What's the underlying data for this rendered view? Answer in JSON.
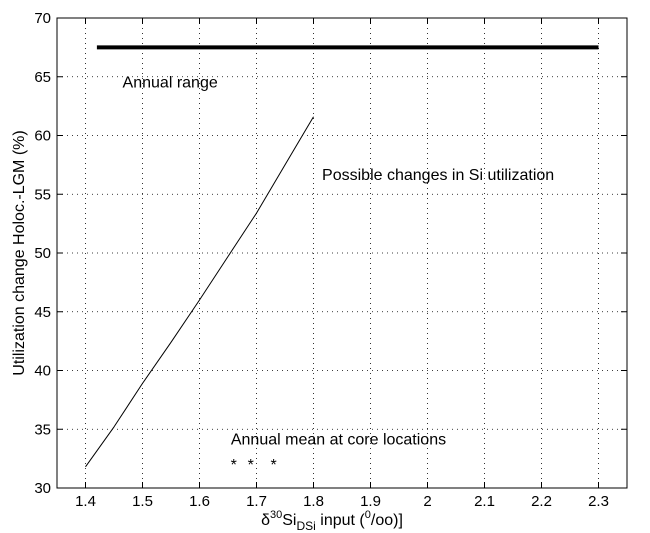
{
  "chart_data": {
    "type": "line",
    "xlabel": {
      "delta": "δ",
      "superscript": "30",
      "base": "Si",
      "subscript": "DSi",
      "rest_before_unit": " input (",
      "unit_superscript": "0",
      "unit_rest": "/oo)]"
    },
    "ylabel": "Utilization change Holoc.-LGM (%)",
    "xlim": [
      1.35,
      2.35
    ],
    "ylim": [
      30,
      70
    ],
    "xticks": [
      1.4,
      1.5,
      1.6,
      1.7,
      1.8,
      1.9,
      2,
      2.1,
      2.2,
      2.3
    ],
    "yticks": [
      30,
      35,
      40,
      45,
      50,
      55,
      60,
      65,
      70
    ],
    "grid": true,
    "series": [
      {
        "style": "thin-line",
        "x": [
          1.4,
          1.45,
          1.5,
          1.55,
          1.6,
          1.65,
          1.7,
          1.75,
          1.8
        ],
        "y": [
          31.8,
          35.2,
          38.9,
          42.4,
          46.0,
          49.7,
          53.4,
          57.5,
          61.6
        ]
      },
      {
        "style": "thick-line",
        "x": [
          1.42,
          2.3
        ],
        "y": [
          67.5,
          67.5
        ]
      },
      {
        "style": "asterisk-markers",
        "x": [
          1.66,
          1.69,
          1.73
        ],
        "y": [
          32.2,
          32.2,
          32.2
        ]
      }
    ],
    "annotations": [
      {
        "id": "annual-range",
        "text": "Annual range",
        "x": 1.465,
        "y": 64.1
      },
      {
        "id": "si-utilization",
        "text": "Possible changes in Si utilization",
        "x": 1.815,
        "y": 56.2
      },
      {
        "id": "core-locations",
        "text": "Annual mean at core locations",
        "x": 1.655,
        "y": 33.7
      }
    ]
  }
}
